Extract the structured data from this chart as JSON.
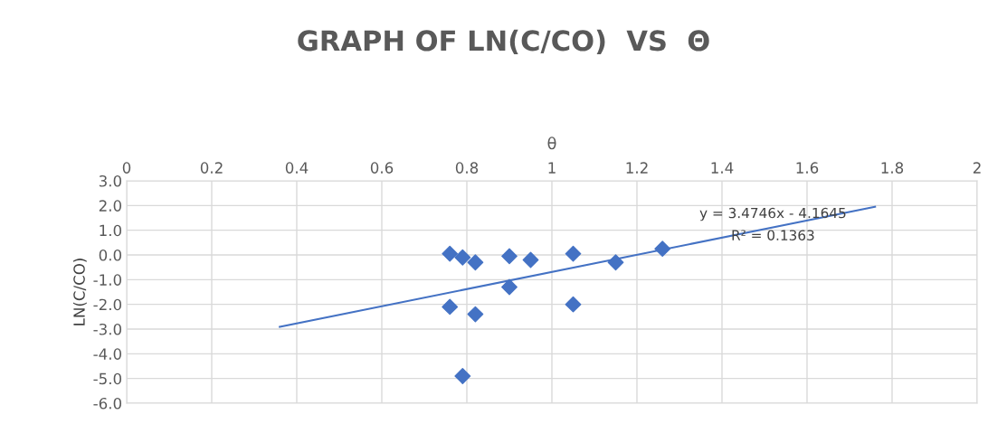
{
  "chart_data": {
    "type": "scatter",
    "title": "GRAPH OF LN(C/CO)  VS  Θ",
    "xlabel": "θ",
    "ylabel": "LN(C/CO)",
    "xlim": [
      0,
      2
    ],
    "xticks": [
      0,
      0.2,
      0.4,
      0.6,
      0.8,
      1,
      1.2,
      1.4,
      1.6,
      1.8,
      2
    ],
    "ylim": [
      -6,
      3
    ],
    "yticks": [
      {
        "value": -6,
        "label": "-6.0"
      },
      {
        "value": -5,
        "label": "-5.0"
      },
      {
        "value": -4,
        "label": "-4.0"
      },
      {
        "value": -3,
        "label": "-3.0"
      },
      {
        "value": -2,
        "label": "-2.0"
      },
      {
        "value": -1,
        "label": "-1.0"
      },
      {
        "value": 0,
        "label": "0.0"
      },
      {
        "value": 1,
        "label": "1.0"
      },
      {
        "value": 2,
        "label": "2.0"
      },
      {
        "value": 3,
        "label": "3.0"
      }
    ],
    "grid": true,
    "series": [
      {
        "marker": "diamond",
        "color": "#4472c4",
        "x": [
          0.76,
          0.79,
          0.82,
          0.9,
          0.95,
          1.05,
          1.15,
          1.26,
          0.9,
          0.76,
          0.82,
          1.05,
          0.79
        ],
        "values": [
          0.05,
          -0.1,
          -0.3,
          -0.05,
          -0.2,
          0.05,
          -0.3,
          0.25,
          -1.3,
          -2.1,
          -2.4,
          -2.0,
          -4.9
        ]
      },
      {
        "type": "line",
        "marker": "none",
        "color": "#4472c4",
        "x": [
          0.36,
          1.76
        ],
        "values": [
          -2.91,
          1.95
        ]
      }
    ],
    "annotations": [
      "y = 3.4746x - 4.1645",
      "R² = 0.1363"
    ]
  }
}
